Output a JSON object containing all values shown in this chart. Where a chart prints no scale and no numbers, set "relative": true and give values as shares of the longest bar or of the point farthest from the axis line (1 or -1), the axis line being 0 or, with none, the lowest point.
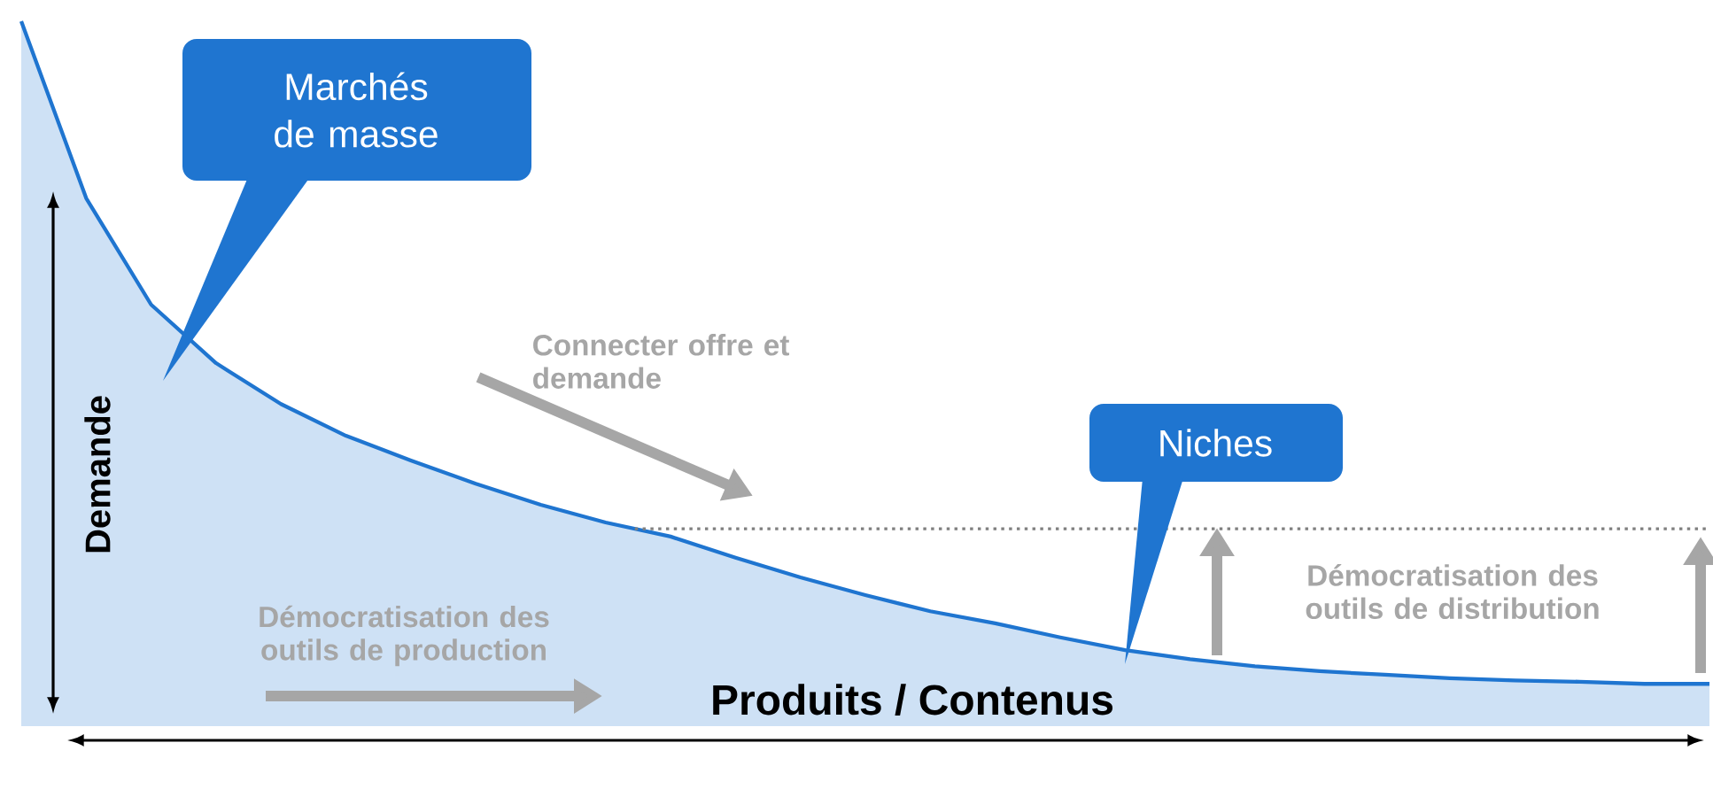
{
  "chart_data": {
    "type": "area",
    "relative": true,
    "color": "#1f75d0",
    "categories": [
      null,
      null,
      null,
      null,
      null,
      null,
      null,
      null,
      null,
      null,
      null,
      null,
      null,
      null,
      null,
      null,
      null,
      null,
      null,
      null,
      null,
      null,
      null,
      null,
      null,
      null,
      null
    ],
    "values": [
      1,
      0.749,
      0.598,
      0.515,
      0.457,
      0.412,
      0.377,
      0.344,
      0.314,
      0.289,
      0.269,
      0.239,
      0.211,
      0.186,
      0.163,
      0.146,
      0.126,
      0.108,
      0.095,
      0.085,
      0.078,
      0.073,
      0.068,
      0.065,
      0.063,
      0.06,
      0.06
    ],
    "xlabel": "Produits / Contenus",
    "ylabel": "Demande",
    "annotations": [
      "Marchés de masse",
      "Niches",
      "Connecter offre et demande",
      "Démocratisation des outils de production",
      "Démocratisation des outils de distribution"
    ],
    "ref_lines": [
      {
        "axis": "y",
        "value": 0.28,
        "color": "#808080",
        "line_style": "dotted"
      }
    ]
  }
}
